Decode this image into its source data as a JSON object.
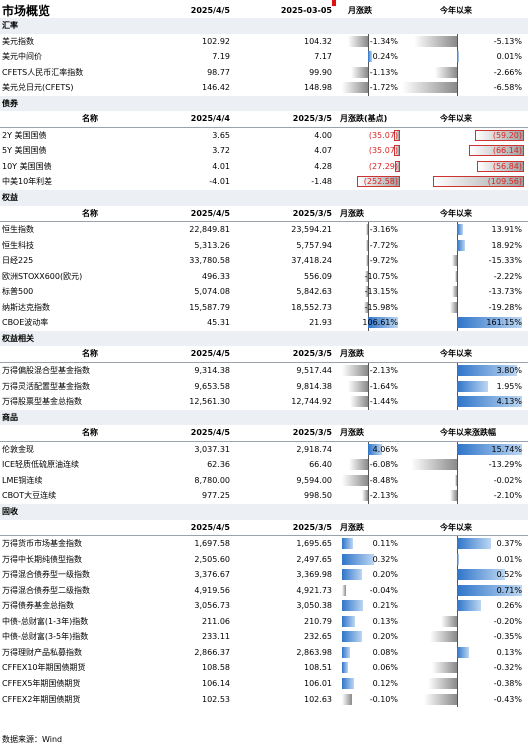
{
  "title": "市场概览",
  "header": {
    "d1": "2025/4/5",
    "d2": "2025-03-05",
    "m": "月涨跌",
    "y": "今年以来"
  },
  "fx": {
    "section": "汇率",
    "rows": [
      {
        "name": "美元指数",
        "a": "102.92",
        "b": "104.32",
        "m": "-1.34%",
        "y": "-5.13%",
        "mv": -1.34,
        "yv": -5.13
      },
      {
        "name": "美元中间价",
        "a": "7.19",
        "b": "7.17",
        "m": "0.24%",
        "y": "0.01%",
        "mv": 0.24,
        "yv": 0.01
      },
      {
        "name": "CFETS人民币汇率指数",
        "a": "98.77",
        "b": "99.90",
        "m": "-1.13%",
        "y": "-2.66%",
        "mv": -1.13,
        "yv": -2.66
      },
      {
        "name": "美元兑日元(CFETS)",
        "a": "146.42",
        "b": "148.98",
        "m": "-1.72%",
        "y": "-6.58%",
        "mv": -1.72,
        "yv": -6.58
      }
    ]
  },
  "bond": {
    "section": "债券",
    "colhdr": {
      "name": "名称",
      "a": "2025/4/4",
      "b": "2025/3/5",
      "m": "月涨跌(基点)",
      "y": "今年以来"
    },
    "rows": [
      {
        "name": "2Y 美国国债",
        "a": "3.65",
        "b": "4.00",
        "m": "(35.07)",
        "y": "(59.20)",
        "mv": -35.07,
        "yv": -59.2
      },
      {
        "name": "5Y 美国国债",
        "a": "3.72",
        "b": "4.07",
        "m": "(35.07)",
        "y": "(66.14)",
        "mv": -35.07,
        "yv": -66.14
      },
      {
        "name": "10Y 美国国债",
        "a": "4.01",
        "b": "4.28",
        "m": "(27.29)",
        "y": "(56.84)",
        "mv": -27.29,
        "yv": -56.84
      },
      {
        "name": "中美10年利差",
        "a": "-4.01",
        "b": "-1.48",
        "m": "(252.58)",
        "y": "(109.56)",
        "mv": -252.58,
        "yv": -109.56
      }
    ]
  },
  "equity": {
    "section": "权益",
    "colhdr": {
      "name": "名称",
      "a": "2025/4/5",
      "b": "2025/3/5",
      "m": "月涨跌",
      "y": "今年以来"
    },
    "rows": [
      {
        "name": "恒生指数",
        "a": "22,849.81",
        "b": "23,594.21",
        "m": "-3.16%",
        "y": "13.91%",
        "mv": -3.16,
        "yv": 13.91
      },
      {
        "name": "恒生科技",
        "a": "5,313.26",
        "b": "5,757.94",
        "m": "-7.72%",
        "y": "18.92%",
        "mv": -7.72,
        "yv": 18.92
      },
      {
        "name": "日经225",
        "a": "33,780.58",
        "b": "37,418.24",
        "m": "-9.72%",
        "y": "-15.33%",
        "mv": -9.72,
        "yv": -15.33
      },
      {
        "name": "欧洲STOXX600(欧元)",
        "a": "496.33",
        "b": "556.09",
        "m": "-10.75%",
        "y": "-2.22%",
        "mv": -10.75,
        "yv": -2.22
      },
      {
        "name": "标普500",
        "a": "5,074.08",
        "b": "5,842.63",
        "m": "-13.15%",
        "y": "-13.73%",
        "mv": -13.15,
        "yv": -13.73
      },
      {
        "name": "纳斯达克指数",
        "a": "15,587.79",
        "b": "18,552.73",
        "m": "-15.98%",
        "y": "-19.28%",
        "mv": -15.98,
        "yv": -19.28
      },
      {
        "name": "CBOE波动率",
        "a": "45.31",
        "b": "21.93",
        "m": "106.61%",
        "y": "161.15%",
        "mv": 106.61,
        "yv": 161.15
      }
    ]
  },
  "eqrel": {
    "section": "权益相关",
    "colhdr": {
      "name": "名称",
      "a": "2025/4/5",
      "b": "2025/3/5",
      "m": "月涨跌",
      "y": "今年以来"
    },
    "rows": [
      {
        "name": "万得偏股混合型基金指数",
        "a": "9,314.38",
        "b": "9,517.44",
        "m": "-2.13%",
        "y": "3.80%",
        "mv": -2.13,
        "yv": 3.8
      },
      {
        "name": "万得灵活配置型基金指数",
        "a": "9,653.58",
        "b": "9,814.38",
        "m": "-1.64%",
        "y": "1.95%",
        "mv": -1.64,
        "yv": 1.95
      },
      {
        "name": "万得股票型基金总指数",
        "a": "12,561.30",
        "b": "12,744.92",
        "m": "-1.44%",
        "y": "4.13%",
        "mv": -1.44,
        "yv": 4.13
      }
    ]
  },
  "comm": {
    "section": "商品",
    "colhdr": {
      "name": "名称",
      "a": "2025/4/5",
      "b": "2025/3/5",
      "m": "月涨跌",
      "y": "今年以来涨跌幅"
    },
    "rows": [
      {
        "name": "伦敦金现",
        "a": "3,037.31",
        "b": "2,918.74",
        "m": "4.06%",
        "y": "15.74%",
        "mv": 4.06,
        "yv": 15.74
      },
      {
        "name": "ICE轻质低硫原油连续",
        "a": "62.36",
        "b": "66.40",
        "m": "-6.08%",
        "y": "-13.29%",
        "mv": -6.08,
        "yv": -13.29
      },
      {
        "name": "LME铜连续",
        "a": "8,780.00",
        "b": "9,594.00",
        "m": "-8.48%",
        "y": "-0.02%",
        "mv": -8.48,
        "yv": -0.02
      },
      {
        "name": "CBOT大豆连续",
        "a": "977.25",
        "b": "998.50",
        "m": "-2.13%",
        "y": "-2.10%",
        "mv": -2.13,
        "yv": -2.1
      }
    ]
  },
  "fi": {
    "section": "固收",
    "colhdr": {
      "name": "",
      "a": "2025/4/5",
      "b": "2025/3/5",
      "m": "月涨跌",
      "y": "今年以来"
    },
    "rows": [
      {
        "name": "万得货币市场基金指数",
        "a": "1,697.58",
        "b": "1,695.65",
        "m": "0.11%",
        "y": "0.37%",
        "mv": 0.11,
        "yv": 0.37
      },
      {
        "name": "万得中长期纯债型指数",
        "a": "2,505.60",
        "b": "2,497.65",
        "m": "0.32%",
        "y": "0.01%",
        "mv": 0.32,
        "yv": 0.01
      },
      {
        "name": "万得混合债券型一级指数",
        "a": "3,376.67",
        "b": "3,369.98",
        "m": "0.20%",
        "y": "0.52%",
        "mv": 0.2,
        "yv": 0.52
      },
      {
        "name": "万得混合债券型二级指数",
        "a": "4,919.56",
        "b": "4,921.73",
        "m": "-0.04%",
        "y": "0.71%",
        "mv": -0.04,
        "yv": 0.71
      },
      {
        "name": "万得债券基金总指数",
        "a": "3,056.73",
        "b": "3,050.38",
        "m": "0.21%",
        "y": "0.26%",
        "mv": 0.21,
        "yv": 0.26
      },
      {
        "name": "中债-总财富(1-3年)指数",
        "a": "211.06",
        "b": "210.79",
        "m": "0.13%",
        "y": "-0.20%",
        "mv": 0.13,
        "yv": -0.2
      },
      {
        "name": "中债-总财富(3-5年)指数",
        "a": "233.11",
        "b": "232.65",
        "m": "0.20%",
        "y": "-0.35%",
        "mv": 0.2,
        "yv": -0.35
      },
      {
        "name": "万得理财产品私募指数",
        "a": "2,866.37",
        "b": "2,863.98",
        "m": "0.08%",
        "y": "0.13%",
        "mv": 0.08,
        "yv": 0.13
      },
      {
        "name": "CFFEX10年期国债期货",
        "a": "108.58",
        "b": "108.51",
        "m": "0.06%",
        "y": "-0.32%",
        "mv": 0.06,
        "yv": -0.32
      },
      {
        "name": "CFFEX5年期国债期货",
        "a": "106.14",
        "b": "106.01",
        "m": "0.12%",
        "y": "-0.38%",
        "mv": 0.12,
        "yv": -0.38
      },
      {
        "name": "CFFEX2年期国债期货",
        "a": "102.53",
        "b": "102.63",
        "m": "-0.10%",
        "y": "-0.43%",
        "mv": -0.1,
        "yv": -0.43
      }
    ]
  },
  "footer": "数据来源：Wind"
}
